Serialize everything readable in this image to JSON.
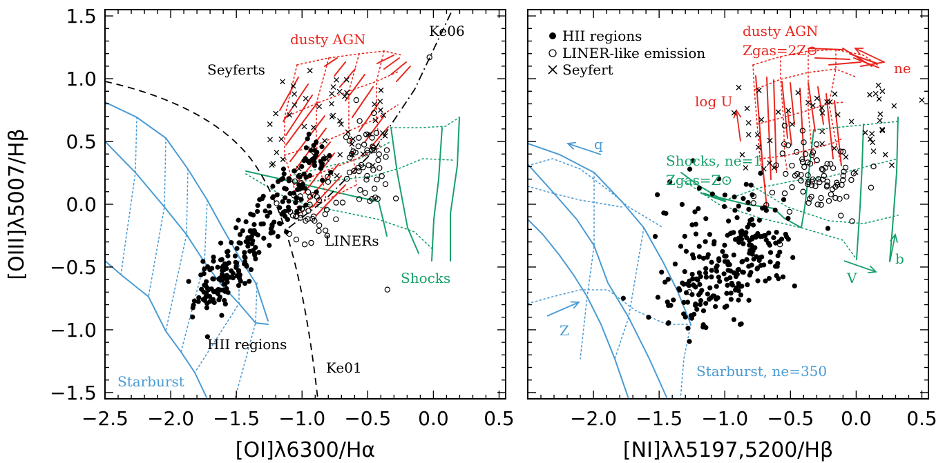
{
  "colors": {
    "blue": "#4a9bd4",
    "green": "#17a06a",
    "red": "#e8271f",
    "black": "#000000"
  },
  "chart_data": [
    {
      "type": "scatter",
      "xlim": [
        -2.5,
        0.55
      ],
      "ylim": [
        -1.55,
        1.55
      ],
      "xticks": [
        "−2.5",
        "−2.0",
        "−1.5",
        "−1.0",
        "−0.5",
        "0.0",
        "0.5"
      ],
      "yticks": [
        "−1.5",
        "−1.0",
        "−0.5",
        "0.0",
        "0.5",
        "1.0",
        "1.5"
      ],
      "xlabel": "[OI]λ6300/Hα",
      "ylabel": "[OIII]λ5007/Hβ",
      "annotations": {
        "dusty_agn": "dusty AGN",
        "ke06": "Ke06",
        "seyferts": "Seyferts",
        "liners": "LINERs",
        "shocks": "Shocks",
        "hii_regions": "HII regions",
        "ke01": "Ke01",
        "starburst": "Starburst"
      },
      "series": [
        {
          "name": "HII regions",
          "marker": "filled-circle"
        },
        {
          "name": "LINER-like emission",
          "marker": "open-circle"
        },
        {
          "name": "Seyfert",
          "marker": "cross"
        }
      ]
    },
    {
      "type": "scatter",
      "xlim": [
        -2.5,
        0.55
      ],
      "ylim": [
        -1.55,
        1.55
      ],
      "xticks": [
        "−2.0",
        "−1.5",
        "−1.0",
        "−0.5",
        "0.0",
        "0.5"
      ],
      "xlabel": "[NI]λλ5197,5200/Hβ",
      "legend": {
        "position": "top-left",
        "entries": [
          "HII regions",
          "LINER-like emission",
          "Seyfert"
        ]
      },
      "annotations": {
        "dusty_agn": "dusty AGN",
        "zgas_agn": "Zgas=2Z⊙",
        "ne": "ne",
        "logu": "log U",
        "q": "q",
        "shocks": "Shocks, ne=1",
        "zgas_shocks": "Zgas=Z⊙",
        "z": "Z",
        "v": "V",
        "b": "b",
        "starburst": "Starburst, ne=350"
      }
    }
  ]
}
